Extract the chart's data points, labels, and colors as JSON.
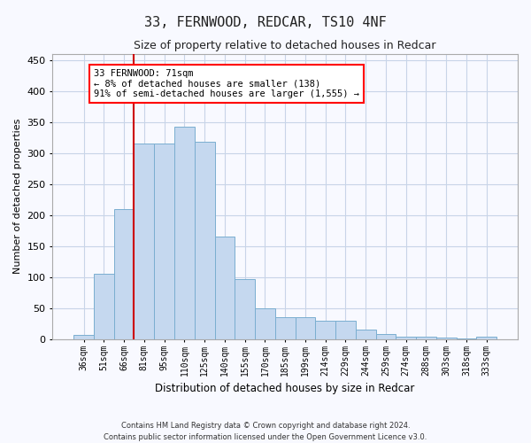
{
  "title_line1": "33, FERNWOOD, REDCAR, TS10 4NF",
  "title_line2": "Size of property relative to detached houses in Redcar",
  "xlabel": "Distribution of detached houses by size in Redcar",
  "ylabel": "Number of detached properties",
  "categories": [
    "36sqm",
    "51sqm",
    "66sqm",
    "81sqm",
    "95sqm",
    "110sqm",
    "125sqm",
    "140sqm",
    "155sqm",
    "170sqm",
    "185sqm",
    "199sqm",
    "214sqm",
    "229sqm",
    "244sqm",
    "259sqm",
    "274sqm",
    "288sqm",
    "303sqm",
    "318sqm",
    "333sqm"
  ],
  "values": [
    7,
    105,
    210,
    315,
    315,
    342,
    318,
    165,
    97,
    50,
    35,
    35,
    30,
    30,
    15,
    8,
    4,
    4,
    2,
    1,
    4
  ],
  "bar_color": "#c5d8ef",
  "bar_edge_color": "#7aaed0",
  "vline_color": "#cc0000",
  "vline_x_idx": 2.5,
  "annotation_text": "33 FERNWOOD: 71sqm\n← 8% of detached houses are smaller (138)\n91% of semi-detached houses are larger (1,555) →",
  "ylim": [
    0,
    460
  ],
  "background_color": "#f8f9ff",
  "grid_color": "#c8d4e8",
  "footer_line1": "Contains HM Land Registry data © Crown copyright and database right 2024.",
  "footer_line2": "Contains public sector information licensed under the Open Government Licence v3.0."
}
